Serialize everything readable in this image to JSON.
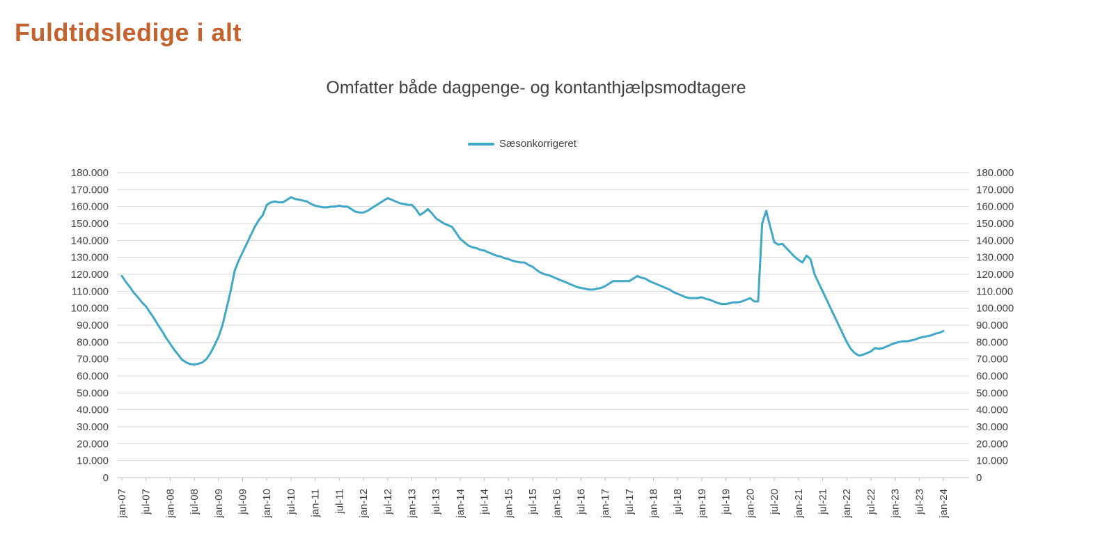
{
  "page": {
    "title": "Fuldtidsledige i alt",
    "title_color": "#c4622d",
    "background": "#ffffff"
  },
  "chart_data": {
    "type": "line",
    "title": "Omfatter både dagpenge- og kontanthjælpsmodtagere",
    "legend_position": "top",
    "grid": true,
    "xlabel": "",
    "ylabel": "",
    "ylim": [
      0,
      180000
    ],
    "y_tick_step": 10000,
    "y_tick_labels": [
      "0",
      "10.000",
      "20.000",
      "30.000",
      "40.000",
      "50.000",
      "60.000",
      "70.000",
      "80.000",
      "90.000",
      "100.000",
      "110.000",
      "120.000",
      "130.000",
      "140.000",
      "150.000",
      "160.000",
      "170.000",
      "180.000"
    ],
    "y_axis_sides": [
      "left",
      "right"
    ],
    "x_interval": "monthly",
    "x_start": "jan-07",
    "x_end": "jan-24",
    "x_label_every_n_months": 6,
    "x_tick_labels": [
      "jan-07",
      "jul-07",
      "jan-08",
      "jul-08",
      "jan-09",
      "jul-09",
      "jan-10",
      "jul-10",
      "jan-11",
      "jul-11",
      "jan-12",
      "jul-12",
      "jan-13",
      "jul-13",
      "jan-14",
      "jul-14",
      "jan-15",
      "jul-15",
      "jan-16",
      "jul-16",
      "jan-17",
      "jul-17",
      "jan-18",
      "jul-18",
      "jan-19",
      "jul-19",
      "jan-20",
      "jul-20",
      "jan-21",
      "jul-21",
      "jan-22",
      "jul-22",
      "jan-23",
      "jul-23",
      "jan-24"
    ],
    "gridline_color": "#d9d9d9",
    "axis_color": "#bfbfbf",
    "series": [
      {
        "name": "Sæsonkorrigeret",
        "color": "#3fa8c8",
        "values": [
          119000,
          115500,
          112500,
          109000,
          106500,
          103500,
          101000,
          97500,
          94000,
          90000,
          86500,
          82500,
          79000,
          75500,
          72500,
          69500,
          68000,
          67000,
          66800,
          67200,
          68000,
          70000,
          73500,
          78000,
          83000,
          90000,
          100000,
          110000,
          122000,
          128000,
          133000,
          138000,
          143000,
          148000,
          152000,
          155000,
          161000,
          162500,
          163000,
          162500,
          162500,
          164000,
          165500,
          164500,
          164000,
          163500,
          163000,
          161500,
          160500,
          160000,
          159500,
          159500,
          160000,
          160000,
          160500,
          160000,
          160000,
          158500,
          157000,
          156500,
          156500,
          157500,
          159000,
          160500,
          162000,
          163500,
          165000,
          164000,
          163000,
          162000,
          161500,
          161000,
          161000,
          158500,
          155000,
          156500,
          158500,
          156000,
          153000,
          151500,
          150000,
          149000,
          148000,
          144500,
          141000,
          139000,
          137000,
          136000,
          135500,
          134500,
          134000,
          133000,
          132000,
          131000,
          130500,
          129500,
          129000,
          128000,
          127500,
          127000,
          127000,
          125500,
          124500,
          122500,
          121000,
          120000,
          119500,
          118500,
          117500,
          116500,
          115500,
          114500,
          113500,
          112500,
          112000,
          111500,
          111000,
          111000,
          111500,
          112000,
          113000,
          114500,
          116000,
          116000,
          116000,
          116000,
          116000,
          117500,
          119000,
          118000,
          117500,
          116000,
          115000,
          114000,
          113000,
          112000,
          111000,
          109500,
          108500,
          107500,
          106500,
          106000,
          106000,
          106000,
          106500,
          105500,
          105000,
          104000,
          103000,
          102500,
          102500,
          103000,
          103500,
          103500,
          104000,
          105000,
          106000,
          104000,
          104000,
          150000,
          157500,
          148000,
          139000,
          137500,
          138000,
          135500,
          133000,
          130500,
          128500,
          127000,
          131000,
          129000,
          120000,
          115000,
          110000,
          105000,
          100000,
          95000,
          90000,
          85000,
          80000,
          76000,
          73500,
          72000,
          72500,
          73500,
          74500,
          76500,
          76000,
          76500,
          77500,
          78500,
          79500,
          80000,
          80500,
          80500,
          81000,
          81500,
          82500,
          83000,
          83500,
          84000,
          85000,
          85500,
          86500
        ]
      }
    ]
  }
}
